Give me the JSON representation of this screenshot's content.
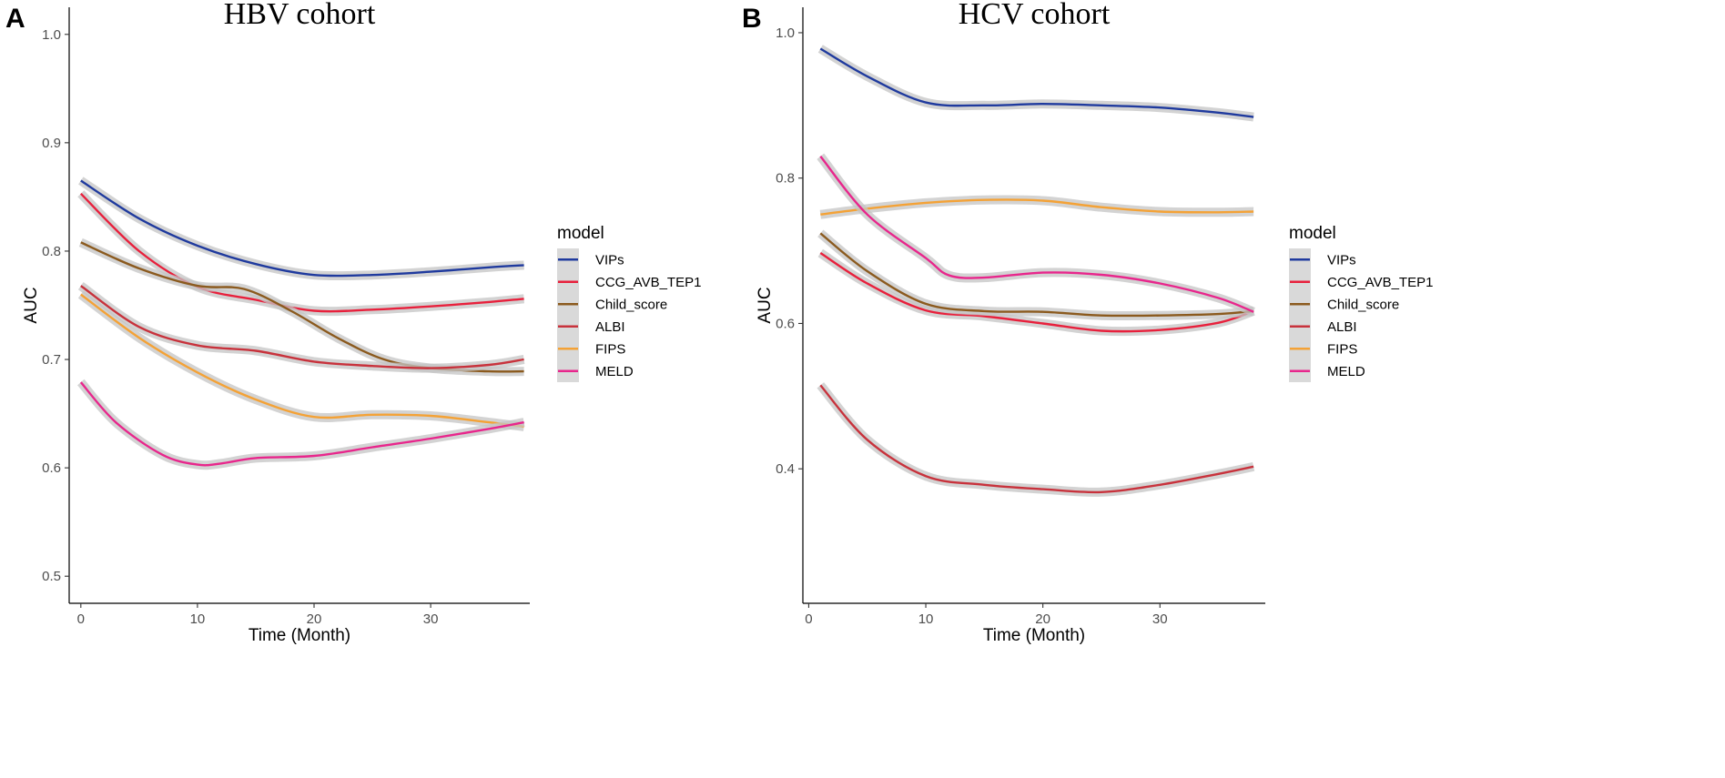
{
  "chart_data": [
    {
      "type": "line",
      "panel_label": "A",
      "title": "HBV cohort",
      "xlabel": "Time (Month)",
      "ylabel": "AUC",
      "xlim": [
        -1,
        38.5
      ],
      "ylim": [
        0.475,
        1.025
      ],
      "xticks": [
        0,
        10,
        20,
        30
      ],
      "xtick_labels": [
        "0",
        "10",
        "20",
        "30"
      ],
      "yticks": [
        0.5,
        0.6,
        0.7,
        0.8,
        0.9,
        1.0
      ],
      "ytick_labels": [
        "0.5",
        "0.6",
        "0.7",
        "0.8",
        "0.9",
        "1.0"
      ],
      "legend_title": "model",
      "legend_position": "right",
      "series": [
        {
          "name": "VIPs",
          "color": "#1f3a9e",
          "x": [
            0,
            5,
            10,
            15,
            20,
            25,
            30,
            35,
            38
          ],
          "y": [
            0.865,
            0.83,
            0.805,
            0.788,
            0.778,
            0.778,
            0.781,
            0.785,
            0.787
          ]
        },
        {
          "name": "CCG_AVB_TEP1",
          "color": "#e8203c",
          "x": [
            0,
            5,
            10,
            15,
            20,
            25,
            30,
            35,
            38
          ],
          "y": [
            0.853,
            0.8,
            0.767,
            0.755,
            0.745,
            0.746,
            0.749,
            0.753,
            0.756
          ]
        },
        {
          "name": "Child_score",
          "color": "#8b5a1e",
          "x": [
            0,
            5,
            10,
            14,
            18,
            22,
            26,
            30,
            35,
            38
          ],
          "y": [
            0.808,
            0.784,
            0.768,
            0.765,
            0.745,
            0.72,
            0.7,
            0.692,
            0.689,
            0.689
          ]
        },
        {
          "name": "ALBI",
          "color": "#c8323c",
          "x": [
            0,
            5,
            10,
            15,
            20,
            25,
            30,
            35,
            38
          ],
          "y": [
            0.768,
            0.73,
            0.713,
            0.708,
            0.698,
            0.694,
            0.692,
            0.695,
            0.7
          ]
        },
        {
          "name": "FIPS",
          "color": "#f4a236",
          "x": [
            0,
            5,
            10,
            15,
            20,
            25,
            30,
            35,
            38
          ],
          "y": [
            0.76,
            0.72,
            0.688,
            0.663,
            0.647,
            0.649,
            0.648,
            0.642,
            0.638
          ]
        },
        {
          "name": "MELD",
          "color": "#e8268c",
          "x": [
            0,
            3,
            7,
            10,
            12,
            15,
            20,
            25,
            30,
            35,
            38
          ],
          "y": [
            0.679,
            0.642,
            0.612,
            0.603,
            0.604,
            0.609,
            0.611,
            0.619,
            0.627,
            0.636,
            0.642
          ]
        }
      ]
    },
    {
      "type": "line",
      "panel_label": "B",
      "title": "HCV cohort",
      "xlabel": "Time (Month)",
      "ylabel": "AUC",
      "xlim": [
        -0.5,
        39
      ],
      "ylim": [
        0.215,
        1.035
      ],
      "xticks": [
        0,
        10,
        20,
        30
      ],
      "xtick_labels": [
        "0",
        "10",
        "20",
        "30"
      ],
      "yticks": [
        0.4,
        0.6,
        0.8,
        1.0
      ],
      "ytick_labels": [
        "0.4",
        "0.6",
        "0.8",
        "1.0"
      ],
      "legend_title": "model",
      "legend_position": "right",
      "series": [
        {
          "name": "VIPs",
          "color": "#1f3a9e",
          "x": [
            1,
            5,
            10,
            15,
            20,
            25,
            30,
            35,
            38
          ],
          "y": [
            0.978,
            0.94,
            0.904,
            0.9,
            0.902,
            0.9,
            0.897,
            0.89,
            0.884
          ]
        },
        {
          "name": "CCG_AVB_TEP1",
          "color": "#e8203c",
          "x": [
            1,
            5,
            10,
            15,
            20,
            25,
            30,
            35,
            38
          ],
          "y": [
            0.697,
            0.655,
            0.618,
            0.61,
            0.6,
            0.59,
            0.591,
            0.601,
            0.617
          ]
        },
        {
          "name": "Child_score",
          "color": "#8b5a1e",
          "x": [
            1,
            5,
            10,
            15,
            20,
            25,
            30,
            35,
            38
          ],
          "y": [
            0.724,
            0.672,
            0.627,
            0.617,
            0.616,
            0.611,
            0.611,
            0.613,
            0.617
          ]
        },
        {
          "name": "ALBI",
          "color": "#c8323c",
          "x": [
            1,
            5,
            10,
            15,
            20,
            25,
            30,
            35,
            38
          ],
          "y": [
            0.515,
            0.44,
            0.39,
            0.378,
            0.372,
            0.368,
            0.378,
            0.393,
            0.403
          ]
        },
        {
          "name": "FIPS",
          "color": "#f4a236",
          "x": [
            1,
            5,
            10,
            15,
            20,
            25,
            30,
            35,
            38
          ],
          "y": [
            0.75,
            0.758,
            0.766,
            0.77,
            0.769,
            0.76,
            0.754,
            0.753,
            0.754
          ]
        },
        {
          "name": "MELD",
          "color": "#e8268c",
          "x": [
            1,
            5,
            10,
            12,
            15,
            20,
            25,
            30,
            35,
            38
          ],
          "y": [
            0.83,
            0.75,
            0.69,
            0.666,
            0.663,
            0.67,
            0.667,
            0.655,
            0.635,
            0.616
          ]
        }
      ]
    }
  ]
}
